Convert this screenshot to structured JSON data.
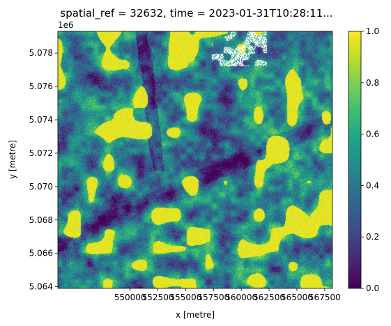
{
  "chart_data": {
    "type": "heatmap",
    "title": "spatial_ref = 32632, time = 2023-01-31T10:28:11...",
    "xlabel": "x [metre]",
    "ylabel": "y [metre]",
    "y_offset_label": "1e6",
    "xlim": [
      543500,
      568200
    ],
    "ylim": [
      5.0639,
      5.0793
    ],
    "x_ticks": [
      550000,
      552500,
      555000,
      557500,
      560000,
      562500,
      565000,
      567500
    ],
    "x_tick_labels": [
      "550000",
      "552500",
      "555000",
      "557500",
      "560000",
      "562500",
      "565000",
      "567500"
    ],
    "y_ticks": [
      5.064,
      5.066,
      5.068,
      5.07,
      5.072,
      5.074,
      5.076,
      5.078
    ],
    "y_tick_labels": [
      "5.064",
      "5.066",
      "5.068",
      "5.070",
      "5.072",
      "5.074",
      "5.076",
      "5.078"
    ],
    "colorbar": {
      "colormap": "viridis",
      "range": [
        0.0,
        1.0
      ],
      "ticks": [
        0.0,
        0.2,
        0.4,
        0.6,
        0.8,
        1.0
      ],
      "tick_labels": [
        "0.0",
        "0.2",
        "0.4",
        "0.6",
        "0.8",
        "1.0"
      ]
    },
    "nodata_color": "#ffffff",
    "grid": false
  }
}
